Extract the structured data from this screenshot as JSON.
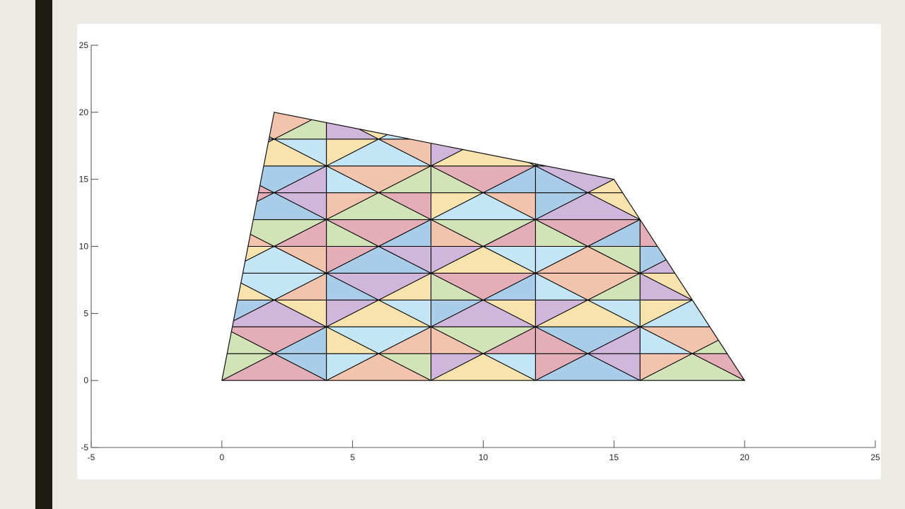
{
  "theme": {
    "accent": "#1C1C12",
    "background": "#EEEBE4",
    "panel": "#FFFFFF",
    "axis": "#262626"
  },
  "chart_data": {
    "type": "mesh",
    "title": "",
    "xlabel": "",
    "ylabel": "",
    "xlim": [
      -5,
      25
    ],
    "ylim": [
      -5,
      25
    ],
    "xticks": [
      -5,
      0,
      5,
      10,
      15,
      20,
      25
    ],
    "yticks": [
      -5,
      0,
      5,
      10,
      15,
      20,
      25
    ],
    "grid": false,
    "boundary": [
      [
        0,
        0
      ],
      [
        20,
        0
      ],
      [
        15,
        15
      ],
      [
        2,
        20
      ]
    ],
    "row_height": 2,
    "block_width": 4,
    "fill_palette": [
      "#A9CCE8",
      "#F2C3AD",
      "#CFB6DA",
      "#D2E3B8",
      "#F8E2AE",
      "#E3AEB7",
      "#C4E5F5"
    ]
  }
}
